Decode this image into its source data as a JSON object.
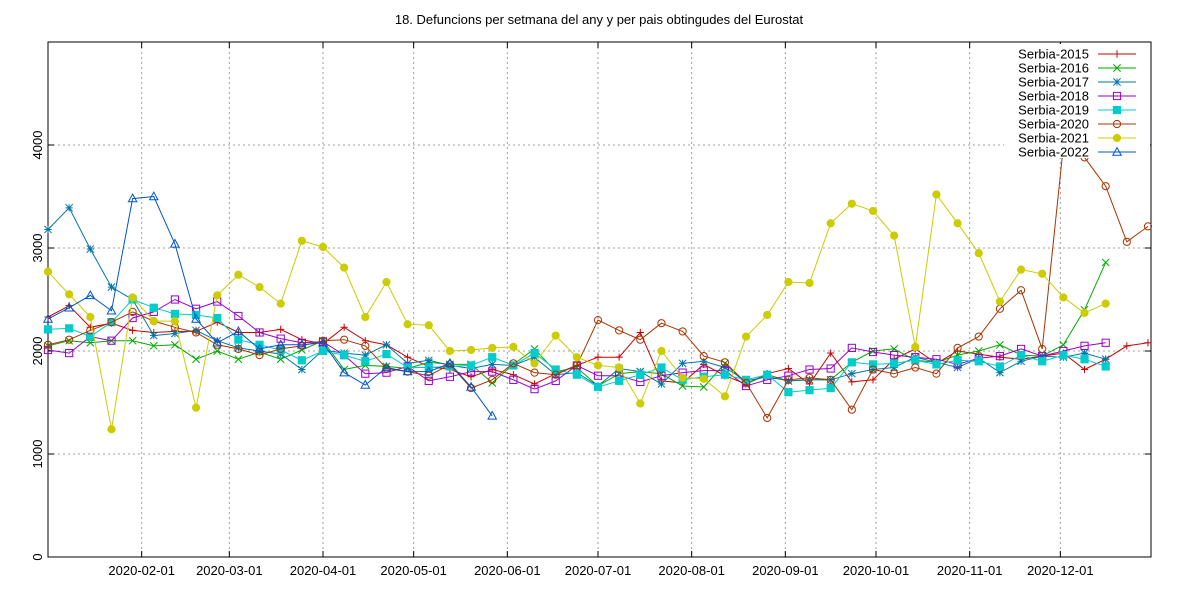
{
  "chart_data": {
    "type": "line",
    "title": "18. Defuncions per setmana del any y per pais obtingudes del Eurostat",
    "xlabel": "",
    "ylabel": "",
    "x_start": "2020-01-01",
    "x_step_days": 7,
    "xlim": [
      "2020-01-01",
      "2020-12-31"
    ],
    "ylim": [
      0,
      5000
    ],
    "y_ticks": [
      0,
      1000,
      2000,
      3000,
      4000
    ],
    "x_ticks": [
      {
        "date": "2020-02-01",
        "label": "2020-02-01"
      },
      {
        "date": "2020-03-01",
        "label": "2020-03-01"
      },
      {
        "date": "2020-04-01",
        "label": "2020-04-01"
      },
      {
        "date": "2020-05-01",
        "label": "2020-05-01"
      },
      {
        "date": "2020-06-01",
        "label": "2020-06-01"
      },
      {
        "date": "2020-07-01",
        "label": "2020-07-01"
      },
      {
        "date": "2020-08-01",
        "label": "2020-08-01"
      },
      {
        "date": "2020-09-01",
        "label": "2020-09-01"
      },
      {
        "date": "2020-10-01",
        "label": "2020-10-01"
      },
      {
        "date": "2020-11-01",
        "label": "2020-11-01"
      },
      {
        "date": "2020-12-01",
        "label": "2020-12-01"
      }
    ],
    "grid": true,
    "legend_position": "top-right",
    "series": [
      {
        "name": "Serbia-2015",
        "color": "#cc0000",
        "marker": "plus",
        "values": [
          2330,
          2440,
          2230,
          2270,
          2200,
          2180,
          2190,
          2190,
          2280,
          2180,
          2180,
          2210,
          2110,
          2070,
          2230,
          2100,
          2060,
          1940,
          1850,
          1820,
          1750,
          1820,
          1770,
          1680,
          1780,
          1860,
          1940,
          1940,
          2180,
          1710,
          1690,
          1870,
          1760,
          1680,
          1780,
          1830,
          1680,
          1980,
          1700,
          1720,
          1920,
          2020,
          1880,
          2000,
          1970,
          1940,
          1920,
          1950,
          1980,
          1820,
          1920,
          2050,
          2080
        ]
      },
      {
        "name": "Serbia-2016",
        "color": "#00aa00",
        "marker": "x",
        "values": [
          2050,
          2100,
          2080,
          2100,
          2100,
          2050,
          2060,
          1920,
          2000,
          1920,
          1990,
          1920,
          2010,
          2100,
          1820,
          1860,
          1850,
          1830,
          1890,
          1870,
          1870,
          1690,
          1870,
          2020,
          1800,
          1840,
          1660,
          1780,
          1800,
          1780,
          1660,
          1650,
          1880,
          1680,
          1770,
          1710,
          1720,
          1720,
          1890,
          2000,
          2020,
          1910,
          1890,
          1960,
          2000,
          2060,
          1960,
          1950,
          2060,
          2400,
          2860
        ]
      },
      {
        "name": "Serbia-2017",
        "color": "#0077aa",
        "marker": "star",
        "values": [
          3180,
          3390,
          2990,
          2620,
          2500,
          2150,
          2170,
          2200,
          2100,
          2030,
          2000,
          1970,
          1820,
          2010,
          1980,
          1960,
          2060,
          1880,
          1910,
          1860,
          1830,
          1870,
          1860,
          1940,
          1770,
          1790,
          1660,
          1830,
          1800,
          1680,
          1880,
          1900,
          1840,
          1710,
          1750,
          1710,
          1720,
          1720,
          1780,
          1820,
          1840,
          1940,
          1890,
          1840,
          1930,
          1790,
          1900,
          1950,
          1940,
          1980,
          1920
        ]
      },
      {
        "name": "Serbia-2018",
        "color": "#9900cc",
        "marker": "square-open",
        "values": [
          2010,
          1980,
          2140,
          2100,
          2320,
          2380,
          2500,
          2410,
          2480,
          2340,
          2180,
          2120,
          2080,
          2090,
          1960,
          1780,
          1790,
          1850,
          1710,
          1750,
          1800,
          1800,
          1720,
          1630,
          1710,
          1860,
          1760,
          1760,
          1700,
          1760,
          1790,
          1810,
          1810,
          1660,
          1720,
          1760,
          1820,
          1830,
          2030,
          1990,
          1960,
          1940,
          1920,
          1870,
          1930,
          1950,
          2020,
          1950,
          2000,
          2050,
          2080
        ]
      },
      {
        "name": "Serbia-2019",
        "color": "#00cccc",
        "marker": "square-filled",
        "values": [
          2210,
          2220,
          2140,
          2280,
          2500,
          2420,
          2360,
          2350,
          2320,
          2110,
          2060,
          2010,
          1910,
          2000,
          1960,
          1900,
          1970,
          1840,
          1840,
          1850,
          1860,
          1940,
          1860,
          1980,
          1820,
          1770,
          1650,
          1710,
          1770,
          1840,
          1720,
          1750,
          1770,
          1720,
          1770,
          1600,
          1620,
          1640,
          1890,
          1870,
          1880,
          1910,
          1870,
          1910,
          1900,
          1850,
          1960,
          1900,
          1960,
          1920,
          1850
        ]
      },
      {
        "name": "Serbia-2020",
        "color": "#aa3300",
        "marker": "circle-open",
        "values": [
          2060,
          2110,
          2200,
          2280,
          2380,
          2290,
          2230,
          2180,
          2060,
          2020,
          1960,
          2020,
          2050,
          2100,
          2110,
          2050,
          1830,
          1800,
          1760,
          1870,
          1640,
          1720,
          1880,
          1790,
          1770,
          1860,
          2300,
          2200,
          2110,
          2270,
          2190,
          1950,
          1890,
          1690,
          1350,
          1720,
          1740,
          1720,
          1430,
          1820,
          1780,
          1840,
          1780,
          2030,
          2140,
          2410,
          2590,
          2020,
          3990,
          3880,
          3600,
          3060,
          3210
        ]
      },
      {
        "name": "Serbia-2021",
        "color": "#cccc00",
        "marker": "circle-filled",
        "values": [
          2770,
          2550,
          2330,
          1240,
          2520,
          2290,
          2290,
          1450,
          2540,
          2740,
          2620,
          2460,
          3070,
          3010,
          2810,
          2330,
          2670,
          2260,
          2250,
          2000,
          2010,
          2030,
          2040,
          1880,
          2150,
          1940,
          1860,
          1840,
          1490,
          2000,
          1740,
          1730,
          1560,
          2140,
          2350,
          2670,
          2660,
          3240,
          3430,
          3360,
          3120,
          2040,
          3520,
          3240,
          2950,
          2480,
          2790,
          2750,
          2520,
          2370,
          2460
        ]
      },
      {
        "name": "Serbia-2022",
        "color": "#0055cc",
        "marker": "triangle-open",
        "values": [
          2310,
          2420,
          2540,
          2390,
          3480,
          3500,
          3040,
          2310,
          2080,
          2190,
          2020,
          2060,
          2060,
          2080,
          1790,
          1670,
          1840,
          1800,
          1800,
          1880,
          1650,
          1370
        ]
      }
    ]
  }
}
